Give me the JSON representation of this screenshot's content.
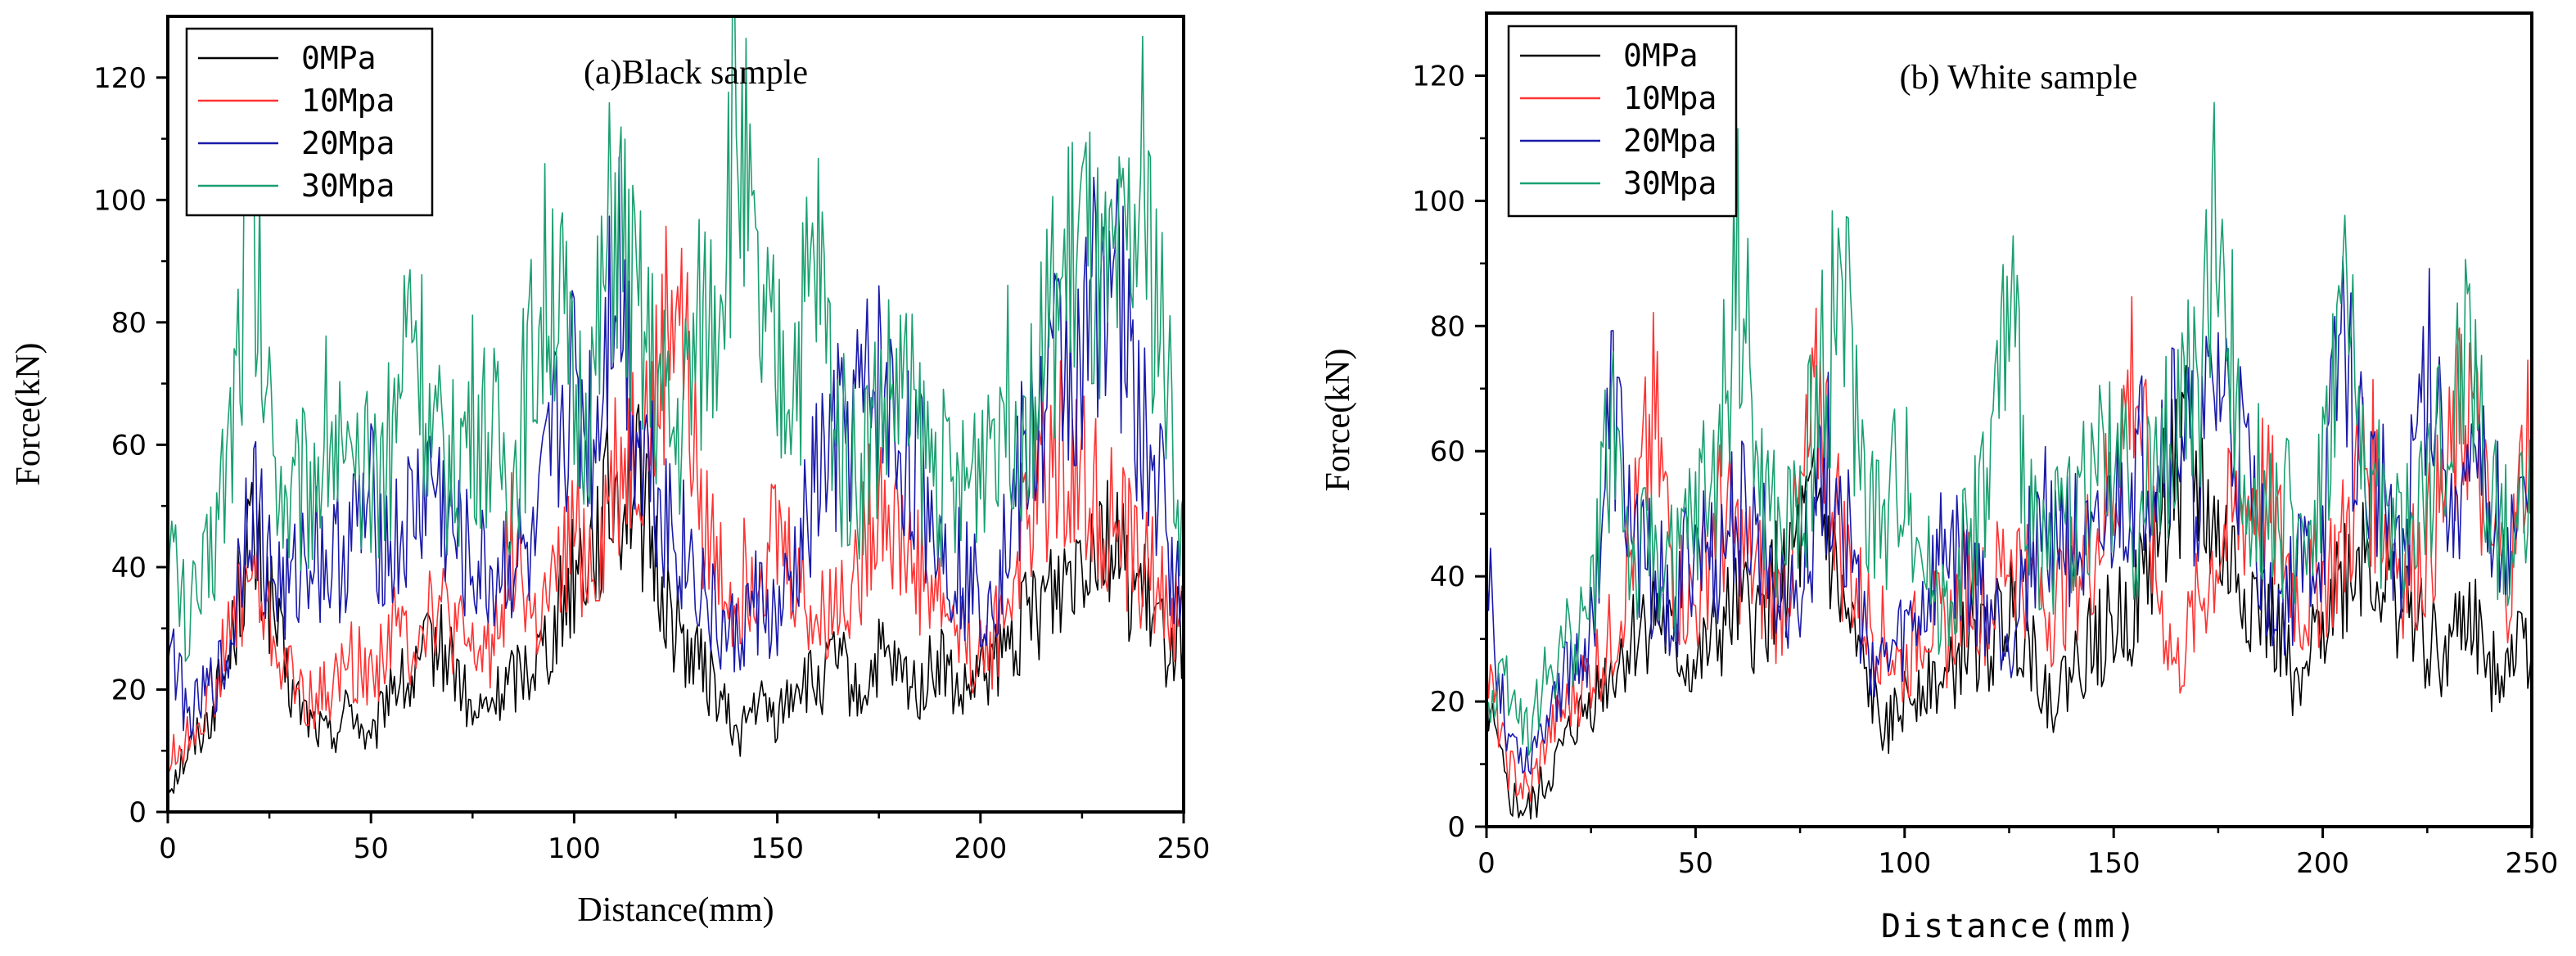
{
  "chart_data": [
    {
      "type": "line",
      "title": "(a)Black sample",
      "xlabel": "Distance(mm)",
      "ylabel": "Force(kN)",
      "xlim": [
        0,
        250
      ],
      "ylim": [
        0,
        130
      ],
      "xticks": [
        0,
        50,
        100,
        150,
        200,
        250
      ],
      "yticks": [
        0,
        20,
        40,
        60,
        80,
        100,
        120
      ],
      "legend_position": "top-left",
      "series": [
        {
          "name": "0MPa",
          "color": "#000000",
          "x": [
            0,
            5,
            10,
            15,
            20,
            25,
            30,
            35,
            40,
            45,
            50,
            55,
            60,
            65,
            70,
            75,
            80,
            85,
            90,
            95,
            100,
            105,
            110,
            115,
            120,
            125,
            130,
            135,
            140,
            145,
            150,
            155,
            160,
            165,
            170,
            175,
            180,
            185,
            190,
            195,
            200,
            205,
            210,
            215,
            220,
            225,
            230,
            235,
            240,
            245,
            250
          ],
          "values": [
            5,
            10,
            15,
            25,
            45,
            35,
            20,
            15,
            12,
            18,
            10,
            22,
            20,
            28,
            25,
            15,
            18,
            22,
            25,
            30,
            40,
            45,
            52,
            55,
            40,
            30,
            25,
            20,
            12,
            18,
            15,
            22,
            20,
            25,
            18,
            25,
            22,
            20,
            25,
            18,
            22,
            25,
            30,
            35,
            38,
            45,
            48,
            40,
            35,
            28,
            30
          ]
        },
        {
          "name": "10Mpa",
          "color": "#ff3333",
          "x": [
            0,
            5,
            10,
            15,
            20,
            25,
            30,
            35,
            40,
            45,
            50,
            55,
            60,
            65,
            70,
            75,
            80,
            85,
            90,
            95,
            100,
            105,
            110,
            115,
            120,
            125,
            130,
            135,
            140,
            145,
            150,
            155,
            160,
            165,
            170,
            175,
            180,
            185,
            190,
            195,
            200,
            205,
            210,
            215,
            220,
            225,
            230,
            235,
            240,
            245,
            250
          ],
          "values": [
            8,
            12,
            18,
            28,
            40,
            30,
            22,
            18,
            20,
            25,
            22,
            30,
            28,
            35,
            30,
            25,
            28,
            45,
            30,
            35,
            45,
            40,
            55,
            60,
            65,
            88,
            55,
            40,
            35,
            42,
            45,
            38,
            30,
            35,
            40,
            55,
            45,
            40,
            35,
            30,
            25,
            30,
            45,
            55,
            60,
            55,
            50,
            45,
            40,
            35,
            30
          ]
        },
        {
          "name": "20Mpa",
          "color": "#1a1aaa",
          "x": [
            0,
            5,
            10,
            15,
            20,
            25,
            30,
            35,
            40,
            45,
            50,
            55,
            60,
            65,
            70,
            75,
            80,
            85,
            90,
            95,
            100,
            105,
            110,
            115,
            120,
            125,
            130,
            135,
            140,
            145,
            150,
            155,
            160,
            165,
            170,
            175,
            180,
            185,
            190,
            195,
            200,
            205,
            210,
            215,
            220,
            225,
            230,
            235,
            240,
            245,
            250
          ],
          "values": [
            30,
            15,
            20,
            25,
            55,
            40,
            35,
            45,
            40,
            45,
            50,
            42,
            48,
            55,
            45,
            40,
            38,
            42,
            40,
            60,
            70,
            60,
            95,
            65,
            55,
            45,
            40,
            30,
            28,
            35,
            30,
            40,
            55,
            60,
            65,
            70,
            60,
            55,
            45,
            40,
            35,
            40,
            55,
            65,
            75,
            70,
            95,
            80,
            60,
            50,
            30
          ]
        },
        {
          "name": "30Mpa",
          "color": "#1aa070",
          "x": [
            0,
            5,
            10,
            15,
            20,
            25,
            30,
            35,
            40,
            45,
            50,
            55,
            60,
            65,
            70,
            75,
            80,
            85,
            90,
            95,
            100,
            105,
            110,
            115,
            120,
            125,
            130,
            135,
            140,
            145,
            150,
            155,
            160,
            165,
            170,
            175,
            180,
            185,
            190,
            195,
            200,
            205,
            210,
            215,
            220,
            225,
            230,
            235,
            240,
            245,
            250
          ],
          "values": [
            45,
            30,
            40,
            60,
            98,
            65,
            50,
            55,
            65,
            50,
            55,
            60,
            85,
            60,
            55,
            65,
            60,
            55,
            75,
            90,
            65,
            70,
            100,
            80,
            70,
            60,
            75,
            85,
            115,
            80,
            70,
            75,
            90,
            60,
            55,
            65,
            70,
            60,
            55,
            50,
            60,
            70,
            65,
            75,
            85,
            95,
            80,
            85,
            100,
            75,
            45
          ]
        }
      ]
    },
    {
      "type": "line",
      "title": "(b) White sample",
      "xlabel": "Distance(mm)",
      "ylabel": "Force(kN)",
      "xlim": [
        0,
        250
      ],
      "ylim": [
        0,
        130
      ],
      "xticks": [
        0,
        50,
        100,
        150,
        200,
        250
      ],
      "yticks": [
        0,
        20,
        40,
        60,
        80,
        100,
        120
      ],
      "legend_position": "top-left",
      "series": [
        {
          "name": "0MPa",
          "color": "#000000",
          "x": [
            0,
            5,
            10,
            15,
            20,
            25,
            30,
            35,
            40,
            45,
            50,
            55,
            60,
            65,
            70,
            75,
            80,
            85,
            90,
            95,
            100,
            105,
            110,
            115,
            120,
            125,
            130,
            135,
            140,
            145,
            150,
            155,
            160,
            165,
            170,
            175,
            180,
            185,
            190,
            195,
            200,
            205,
            210,
            215,
            220,
            225,
            230,
            235,
            240,
            245,
            250
          ],
          "values": [
            20,
            5,
            2,
            8,
            15,
            20,
            25,
            30,
            35,
            28,
            25,
            30,
            35,
            32,
            40,
            45,
            50,
            35,
            25,
            15,
            20,
            25,
            22,
            30,
            28,
            35,
            30,
            20,
            25,
            30,
            32,
            35,
            45,
            60,
            55,
            45,
            40,
            35,
            30,
            20,
            35,
            40,
            45,
            38,
            35,
            30,
            28,
            35,
            25,
            30,
            30
          ]
        },
        {
          "name": "10Mpa",
          "color": "#ff3333",
          "x": [
            0,
            5,
            10,
            15,
            20,
            25,
            30,
            35,
            40,
            45,
            50,
            55,
            60,
            65,
            70,
            75,
            80,
            85,
            90,
            95,
            100,
            105,
            110,
            115,
            120,
            125,
            130,
            135,
            140,
            145,
            150,
            155,
            160,
            165,
            170,
            175,
            180,
            185,
            190,
            195,
            200,
            205,
            210,
            215,
            220,
            225,
            230,
            235,
            240,
            245,
            250
          ],
          "values": [
            25,
            10,
            5,
            15,
            20,
            25,
            30,
            45,
            65,
            40,
            35,
            50,
            45,
            40,
            35,
            50,
            70,
            45,
            35,
            30,
            25,
            35,
            30,
            40,
            35,
            45,
            40,
            35,
            40,
            45,
            55,
            75,
            40,
            25,
            35,
            45,
            50,
            55,
            45,
            35,
            40,
            45,
            60,
            50,
            40,
            45,
            55,
            70,
            45,
            40,
            70
          ]
        },
        {
          "name": "20Mpa",
          "color": "#1a1aaa",
          "x": [
            0,
            5,
            10,
            15,
            20,
            25,
            30,
            35,
            40,
            45,
            50,
            55,
            60,
            65,
            70,
            75,
            80,
            85,
            90,
            95,
            100,
            105,
            110,
            115,
            120,
            125,
            130,
            135,
            140,
            145,
            150,
            155,
            160,
            165,
            170,
            175,
            180,
            185,
            190,
            195,
            200,
            205,
            210,
            215,
            220,
            225,
            230,
            235,
            240,
            245,
            250
          ],
          "values": [
            40,
            15,
            10,
            20,
            25,
            30,
            65,
            45,
            40,
            35,
            45,
            40,
            50,
            45,
            40,
            35,
            60,
            55,
            30,
            25,
            30,
            35,
            45,
            40,
            35,
            30,
            45,
            50,
            45,
            40,
            50,
            55,
            60,
            65,
            55,
            70,
            60,
            45,
            35,
            40,
            45,
            80,
            55,
            50,
            45,
            75,
            60,
            50,
            55,
            45,
            50
          ]
        },
        {
          "name": "30Mpa",
          "color": "#1aa070",
          "x": [
            0,
            5,
            10,
            15,
            20,
            25,
            30,
            35,
            40,
            45,
            50,
            55,
            60,
            65,
            70,
            75,
            80,
            85,
            90,
            95,
            100,
            105,
            110,
            115,
            120,
            125,
            130,
            135,
            140,
            145,
            150,
            155,
            160,
            165,
            170,
            175,
            180,
            185,
            190,
            195,
            200,
            205,
            210,
            215,
            220,
            225,
            230,
            235,
            240,
            245,
            250
          ],
          "values": [
            20,
            25,
            15,
            25,
            30,
            35,
            68,
            40,
            45,
            40,
            50,
            55,
            92,
            55,
            45,
            50,
            70,
            87,
            55,
            45,
            60,
            40,
            35,
            45,
            55,
            82,
            50,
            45,
            50,
            55,
            60,
            50,
            55,
            65,
            70,
            98,
            60,
            55,
            50,
            45,
            55,
            85,
            55,
            50,
            45,
            55,
            60,
            80,
            50,
            45,
            55
          ]
        }
      ]
    }
  ]
}
